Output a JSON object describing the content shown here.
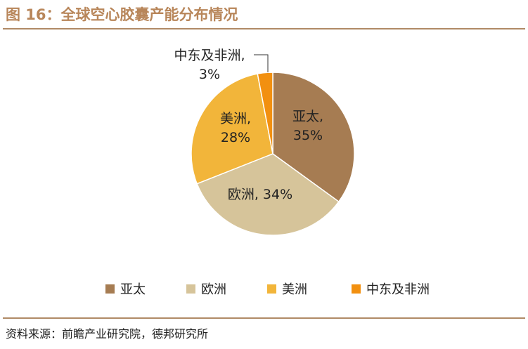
{
  "figure": {
    "title": "图 16：全球空心胶囊产能分布情况",
    "source": "资料来源：前瞻产业研究院，德邦研究所"
  },
  "chart_data": {
    "type": "pie",
    "title": "",
    "start_angle_deg": 90,
    "direction": "clockwise",
    "slices": [
      {
        "name": "亚太",
        "value": 35,
        "label": [
          "亚太,",
          "35%"
        ],
        "color": "#a67c52"
      },
      {
        "name": "欧洲",
        "value": 34,
        "label": [
          "欧洲, 34%"
        ],
        "color": "#d6c49a"
      },
      {
        "name": "美洲",
        "value": 28,
        "label": [
          "美洲,",
          "28%"
        ],
        "color": "#f2b53a"
      },
      {
        "name": "中东及非洲",
        "value": 3,
        "label": [
          "中东及非洲,",
          "3%"
        ],
        "color": "#f29010"
      }
    ],
    "legend": {
      "position": "bottom",
      "entries": [
        "亚太",
        "欧洲",
        "美洲",
        "中东及非洲"
      ]
    }
  }
}
